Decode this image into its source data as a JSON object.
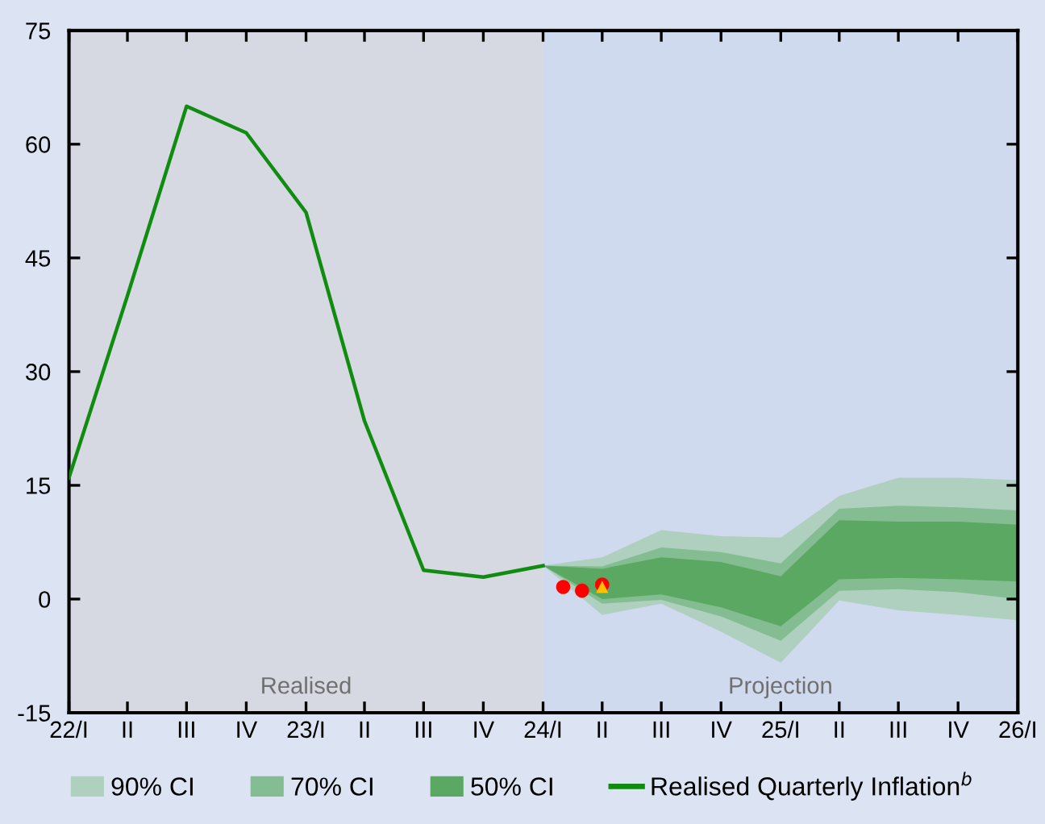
{
  "chart_data": {
    "type": "line",
    "x": [
      "2022-01",
      "2022-04",
      "2022-07",
      "2022-10",
      "2023-01",
      "2023-04",
      "2023-07",
      "2023-10",
      "2024-01"
    ],
    "xlim": [
      "2022-01",
      "2026-01"
    ],
    "xticks": [
      {
        "value": "2022-01",
        "label": "22/I"
      },
      {
        "value": "2022-04",
        "label": "II"
      },
      {
        "value": "2022-07",
        "label": "III"
      },
      {
        "value": "2022-10",
        "label": "IV"
      },
      {
        "value": "2023-01",
        "label": "23/I"
      },
      {
        "value": "2023-04",
        "label": "II"
      },
      {
        "value": "2023-07",
        "label": "III"
      },
      {
        "value": "2023-10",
        "label": "IV"
      },
      {
        "value": "2024-01",
        "label": "24/I"
      },
      {
        "value": "2024-04",
        "label": "II"
      },
      {
        "value": "2024-07",
        "label": "III"
      },
      {
        "value": "2024-10",
        "label": "IV"
      },
      {
        "value": "2025-01",
        "label": "25/I"
      },
      {
        "value": "2025-04",
        "label": "II"
      },
      {
        "value": "2025-07",
        "label": "III"
      },
      {
        "value": "2025-10",
        "label": "IV"
      },
      {
        "value": "2026-01",
        "label": "26/I"
      }
    ],
    "ylim": [
      -15,
      75
    ],
    "yticks": [
      -15,
      0,
      15,
      30,
      45,
      60,
      75
    ],
    "series": [
      {
        "name": "90% CI",
        "type": "area",
        "color": "#afd0be",
        "x": [
          "2024-01",
          "2024-04",
          "2024-07",
          "2024-10",
          "2025-01",
          "2025-04",
          "2025-07",
          "2025-10",
          "2026-01",
          "2026-01",
          "2025-10",
          "2025-07",
          "2025-04",
          "2025-01",
          "2024-10",
          "2024-07",
          "2024-04"
        ],
        "values": [
          4.4,
          5.5,
          9.1,
          8.3,
          8.1,
          13.6,
          16,
          16,
          15.7,
          -2.8,
          -2.1,
          -1.5,
          -0.2,
          -8.4,
          -4.3,
          -0.6,
          -2.1
        ]
      },
      {
        "name": "70% CI",
        "type": "area",
        "color": "#84bd92",
        "x": [
          "2024-01",
          "2024-04",
          "2024-07",
          "2024-10",
          "2025-01",
          "2025-04",
          "2025-07",
          "2025-10",
          "2026-01",
          "2026-01",
          "2025-10",
          "2025-07",
          "2025-04",
          "2025-01",
          "2024-10",
          "2024-07",
          "2024-04"
        ],
        "values": [
          4.4,
          4.3,
          6.8,
          6.2,
          4.7,
          11.9,
          12.3,
          12.1,
          11.7,
          0,
          0.9,
          1.3,
          1.1,
          -5.5,
          -2.3,
          -0.1,
          -0.6
        ]
      },
      {
        "name": "50% CI",
        "type": "area",
        "color": "#5aa862",
        "x": [
          "2024-01",
          "2024-04",
          "2024-07",
          "2024-10",
          "2025-01",
          "2025-04",
          "2025-07",
          "2025-10",
          "2026-01",
          "2026-01",
          "2025-10",
          "2025-07",
          "2025-04",
          "2025-01",
          "2024-10",
          "2024-07",
          "2024-04"
        ],
        "values": [
          4.4,
          4,
          5.5,
          4.9,
          3,
          10.4,
          10.2,
          10.2,
          9.8,
          2.3,
          2.6,
          2.8,
          2.6,
          -3.6,
          -1.1,
          0.6,
          0
        ]
      },
      {
        "name": "Realised Quarterly Inflation$^{b}$",
        "color": "#108c10",
        "values": [
          16,
          40,
          65,
          61.5,
          51,
          23.5,
          3.8,
          2.9,
          4.4
        ]
      },
      {
        "type": "scatter",
        "marker": "circle",
        "color": "#ff0000",
        "x": [
          "2024-02",
          "2024-03",
          "2024-04"
        ],
        "values": [
          1.6,
          1.1,
          1.9
        ]
      },
      {
        "type": "scatter",
        "marker": "triangle",
        "color": "#ffc000",
        "x": [
          "2024-04"
        ],
        "values": [
          1.6
        ]
      }
    ],
    "bands": [
      {
        "axis": "x",
        "from": "2022-01",
        "to": "2024-01",
        "label": "Realised",
        "color": "#d6d9e2"
      },
      {
        "axis": "x",
        "from": "2024-01",
        "to": "2026-01",
        "label": "Projection",
        "color": "#d0daef"
      }
    ],
    "legend": "bottom",
    "grid": false
  }
}
